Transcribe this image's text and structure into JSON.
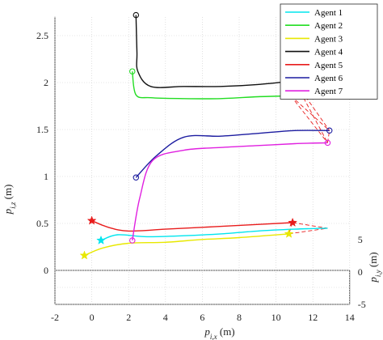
{
  "chart_data": {
    "type": "line",
    "projection": "3d",
    "title": "",
    "xlabel": "p_{i,x} (m)",
    "ylabel": "p_{i,y} (m)",
    "zlabel": "p_{i,z} (m)",
    "xlim": [
      -2,
      14
    ],
    "ylim": [
      -5,
      5
    ],
    "zlim": [
      0,
      2.7
    ],
    "x_ticks": [
      "-2",
      "0",
      "2",
      "4",
      "6",
      "8",
      "10",
      "12",
      "14"
    ],
    "y_ticks": [
      "-5",
      "0",
      "5"
    ],
    "z_ticks": [
      "0",
      "0.5",
      "1",
      "1.5",
      "2",
      "2.5"
    ],
    "grid": true,
    "legend_position": "top-right",
    "series": [
      {
        "name": "Agent 1",
        "color": "#00e5ee",
        "start_marker": "star",
        "end_marker": "none",
        "points": [
          [
            0.5,
            0.5
          ],
          [
            1.4,
            0.56
          ],
          [
            3,
            0.54
          ],
          [
            5,
            0.55
          ],
          [
            7,
            0.57
          ],
          [
            9,
            0.6
          ],
          [
            11,
            0.62
          ],
          [
            12.8,
            0.63
          ]
        ]
      },
      {
        "name": "Agent 2",
        "color": "#22dd22",
        "start_marker": "circle",
        "end_marker": "circle",
        "points": [
          [
            2.2,
            2.3
          ],
          [
            2.4,
            2.05
          ],
          [
            3.2,
            2.02
          ],
          [
            5,
            2.01
          ],
          [
            7,
            2.01
          ],
          [
            9,
            2.03
          ],
          [
            10.8,
            2.04
          ]
        ]
      },
      {
        "name": "Agent 3",
        "color": "#e8e800",
        "start_marker": "star",
        "end_marker": "star",
        "points": [
          [
            -0.4,
            0.34
          ],
          [
            0.6,
            0.42
          ],
          [
            2,
            0.47
          ],
          [
            4,
            0.48
          ],
          [
            6,
            0.51
          ],
          [
            8,
            0.53
          ],
          [
            10.7,
            0.57
          ]
        ]
      },
      {
        "name": "Agent 4",
        "color": "#111111",
        "start_marker": "circle",
        "end_marker": "circle",
        "points": [
          [
            2.4,
            2.9
          ],
          [
            2.45,
            2.5
          ],
          [
            2.5,
            2.3
          ],
          [
            3.2,
            2.14
          ],
          [
            5,
            2.14
          ],
          [
            7,
            2.14
          ],
          [
            9,
            2.16
          ],
          [
            11,
            2.2
          ]
        ]
      },
      {
        "name": "Agent 5",
        "color": "#e81c1c",
        "start_marker": "star",
        "end_marker": "star",
        "points": [
          [
            0,
            0.71
          ],
          [
            0.9,
            0.64
          ],
          [
            2,
            0.6
          ],
          [
            4,
            0.62
          ],
          [
            6,
            0.64
          ],
          [
            8,
            0.66
          ],
          [
            10.9,
            0.69
          ]
        ]
      },
      {
        "name": "Agent 6",
        "color": "#1c1ca0",
        "start_marker": "circle",
        "end_marker": "circle",
        "points": [
          [
            2.4,
            1.17
          ],
          [
            3.5,
            1.4
          ],
          [
            5,
            1.6
          ],
          [
            7,
            1.61
          ],
          [
            9,
            1.64
          ],
          [
            11,
            1.67
          ],
          [
            12.9,
            1.67
          ]
        ]
      },
      {
        "name": "Agent 7",
        "color": "#e020e0",
        "start_marker": "circle",
        "end_marker": "circle",
        "points": [
          [
            2.2,
            0.5
          ],
          [
            2.6,
            0.95
          ],
          [
            3.3,
            1.35
          ],
          [
            5,
            1.46
          ],
          [
            7,
            1.49
          ],
          [
            9,
            1.51
          ],
          [
            11,
            1.53
          ],
          [
            12.8,
            1.54
          ]
        ]
      }
    ],
    "formation_links": {
      "color": "#e81c1c",
      "style": "dashed",
      "groups": [
        {
          "points": [
            [
              11,
              2.2
            ],
            [
              10.8,
              2.04
            ],
            [
              12.8,
              1.54
            ],
            [
              12.9,
              1.67
            ]
          ]
        },
        {
          "points": [
            [
              10.9,
              0.69
            ],
            [
              10.7,
              0.57
            ],
            [
              12.8,
              0.63
            ]
          ]
        }
      ]
    }
  }
}
